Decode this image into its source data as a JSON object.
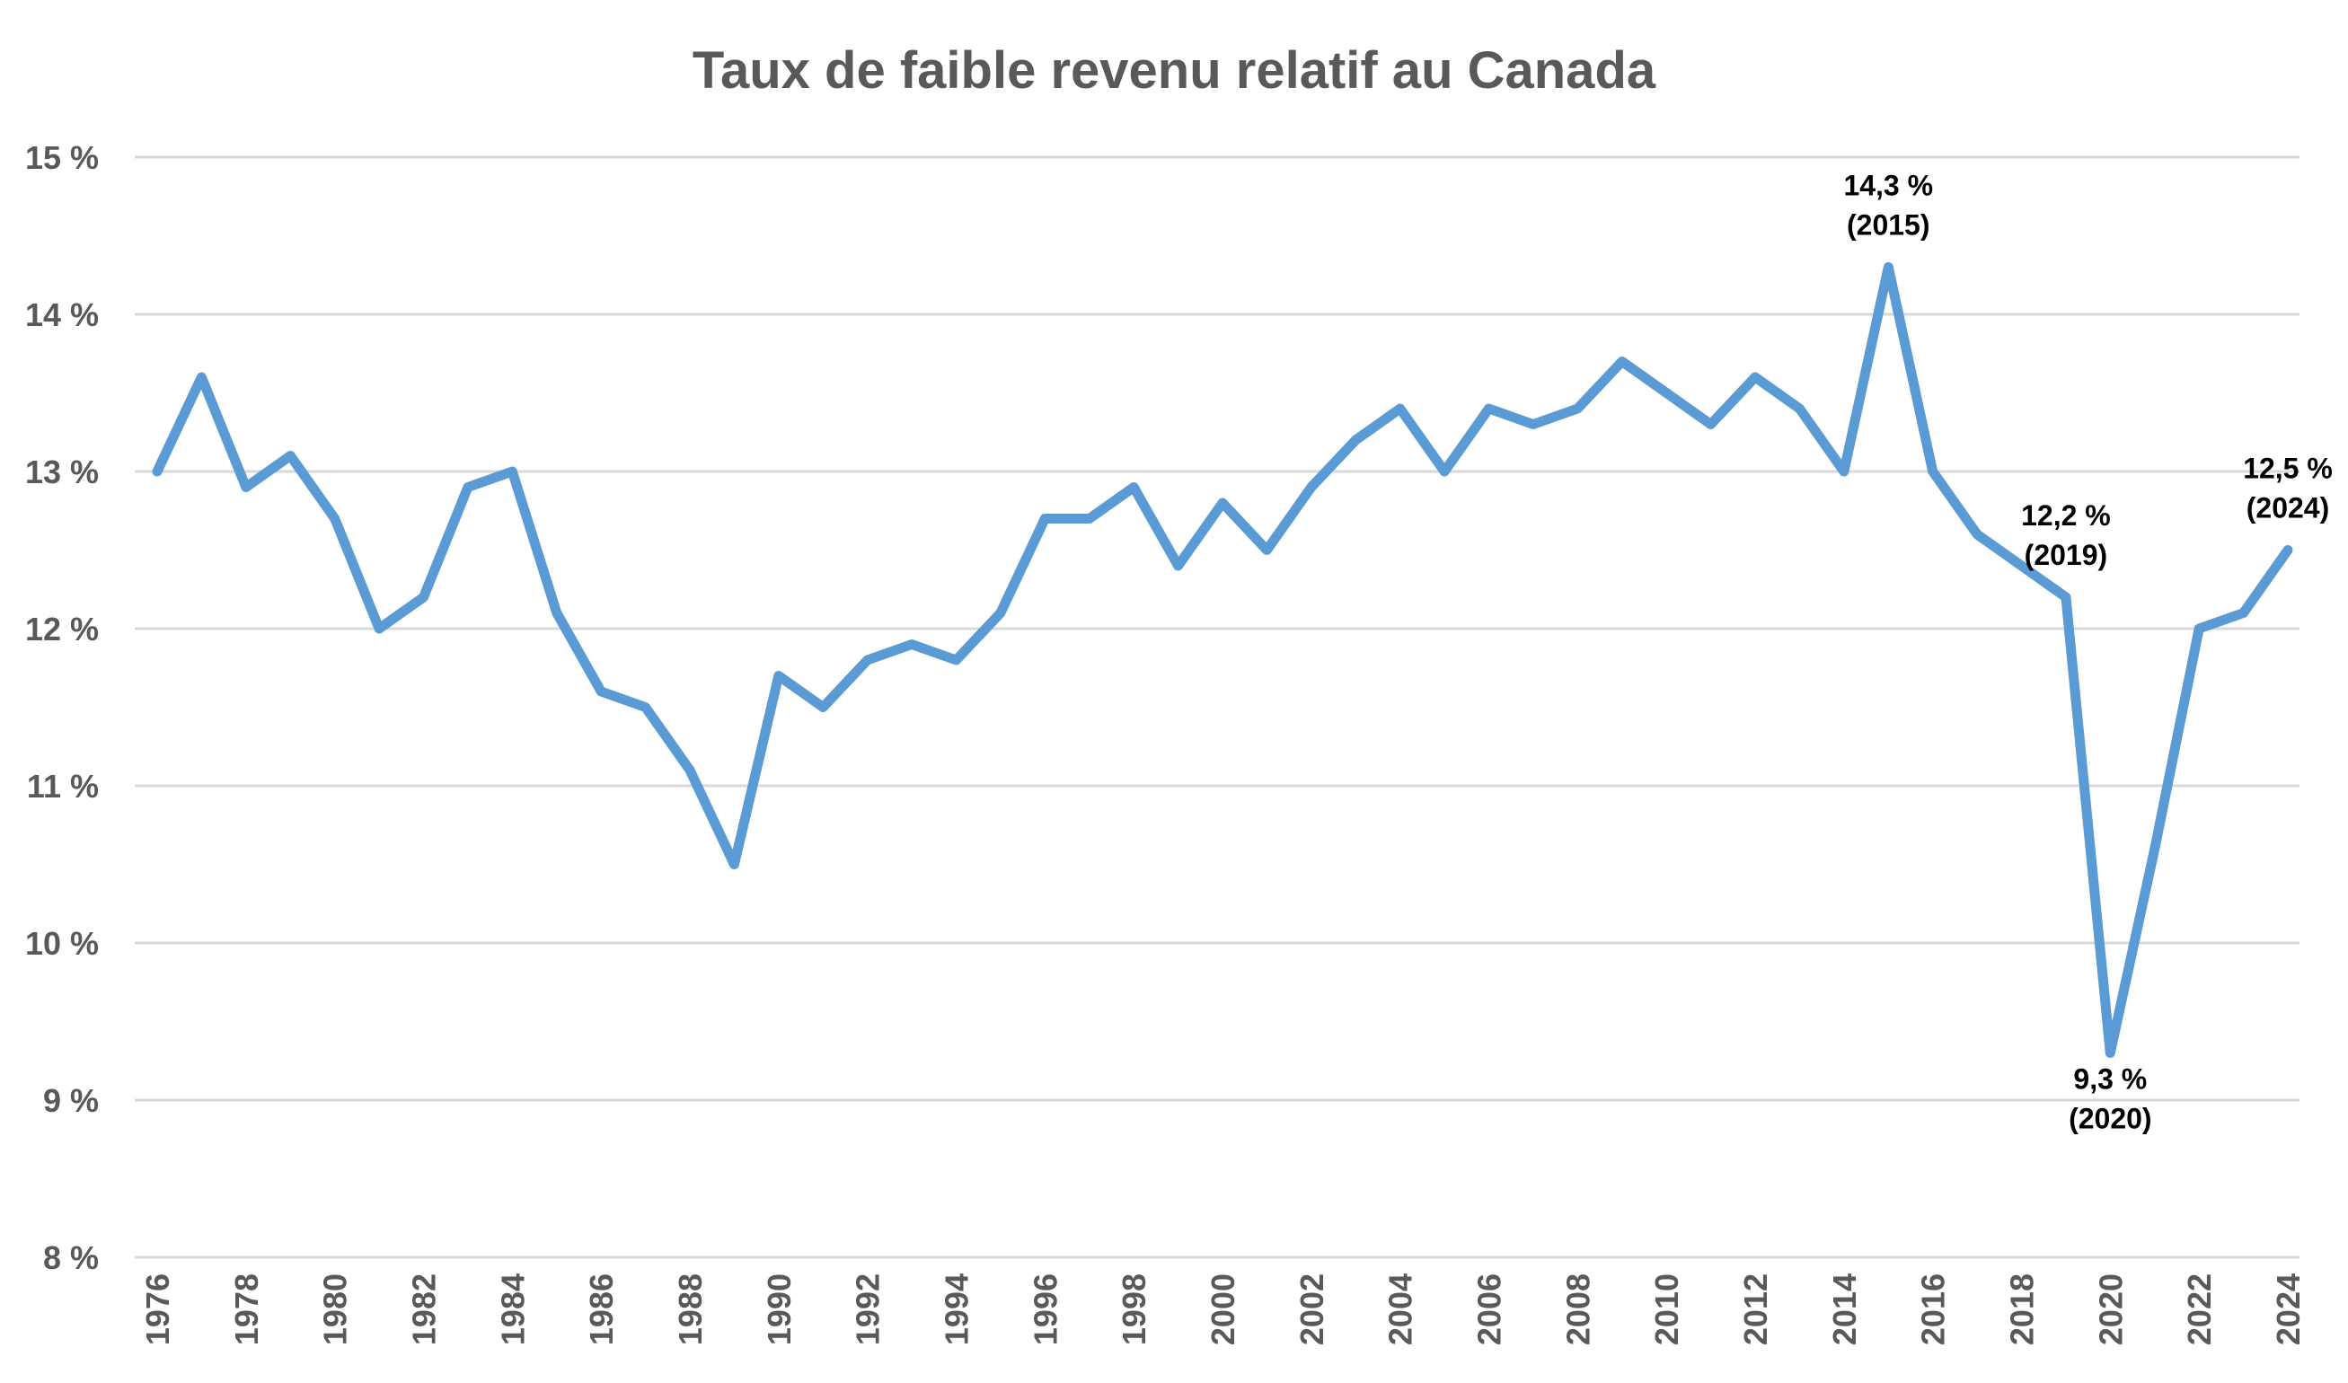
{
  "chart_data": {
    "type": "line",
    "title": "Taux de faible revenu relatif au Canada",
    "xlabel": "",
    "ylabel": "",
    "ylim": [
      8,
      15
    ],
    "y_ticks": [
      {
        "value": 8,
        "label": "8 %"
      },
      {
        "value": 9,
        "label": "9 %"
      },
      {
        "value": 10,
        "label": "10 %"
      },
      {
        "value": 11,
        "label": "11 %"
      },
      {
        "value": 12,
        "label": "12 %"
      },
      {
        "value": 13,
        "label": "13 %"
      },
      {
        "value": 14,
        "label": "14 %"
      },
      {
        "value": 15,
        "label": "15 %"
      }
    ],
    "x_tick_labels": [
      "1976",
      "1978",
      "1980",
      "1982",
      "1984",
      "1986",
      "1988",
      "1990",
      "1992",
      "1994",
      "1996",
      "1998",
      "2000",
      "2002",
      "2004",
      "2006",
      "2008",
      "2010",
      "2012",
      "2014",
      "2016",
      "2018",
      "2020",
      "2022",
      "2024"
    ],
    "grid": true,
    "legend": "none",
    "series_color": "#5b9bd5",
    "x": [
      1976,
      1977,
      1978,
      1979,
      1980,
      1981,
      1982,
      1983,
      1984,
      1985,
      1986,
      1987,
      1988,
      1989,
      1990,
      1991,
      1992,
      1993,
      1994,
      1995,
      1996,
      1997,
      1998,
      1999,
      2000,
      2001,
      2002,
      2003,
      2004,
      2005,
      2006,
      2007,
      2008,
      2009,
      2010,
      2011,
      2012,
      2013,
      2014,
      2015,
      2016,
      2017,
      2018,
      2019,
      2020,
      2021,
      2022,
      2023,
      2024
    ],
    "values": [
      13.0,
      13.6,
      12.9,
      13.1,
      12.7,
      12.0,
      12.2,
      12.9,
      13.0,
      12.1,
      11.6,
      11.5,
      11.1,
      10.5,
      11.7,
      11.5,
      11.8,
      11.9,
      11.8,
      12.1,
      12.7,
      12.7,
      12.9,
      12.4,
      12.8,
      12.5,
      12.9,
      13.2,
      13.4,
      13.0,
      13.4,
      13.3,
      13.4,
      13.7,
      13.5,
      13.3,
      13.6,
      13.4,
      13.0,
      14.3,
      13.0,
      12.6,
      12.4,
      12.2,
      9.3,
      10.6,
      12.0,
      12.1,
      12.5
    ],
    "annotations": [
      {
        "x": 2015,
        "value": 14.3,
        "line1": "14,3 %",
        "line2": "(2015)",
        "position": "above"
      },
      {
        "x": 2019,
        "value": 12.2,
        "line1": "12,2 %",
        "line2": "(2019)",
        "position": "above"
      },
      {
        "x": 2020,
        "value": 9.3,
        "line1": "9,3 %",
        "line2": "(2020)",
        "position": "below"
      },
      {
        "x": 2024,
        "value": 12.5,
        "line1": "12,5 %",
        "line2": "(2024)",
        "position": "above"
      }
    ]
  }
}
